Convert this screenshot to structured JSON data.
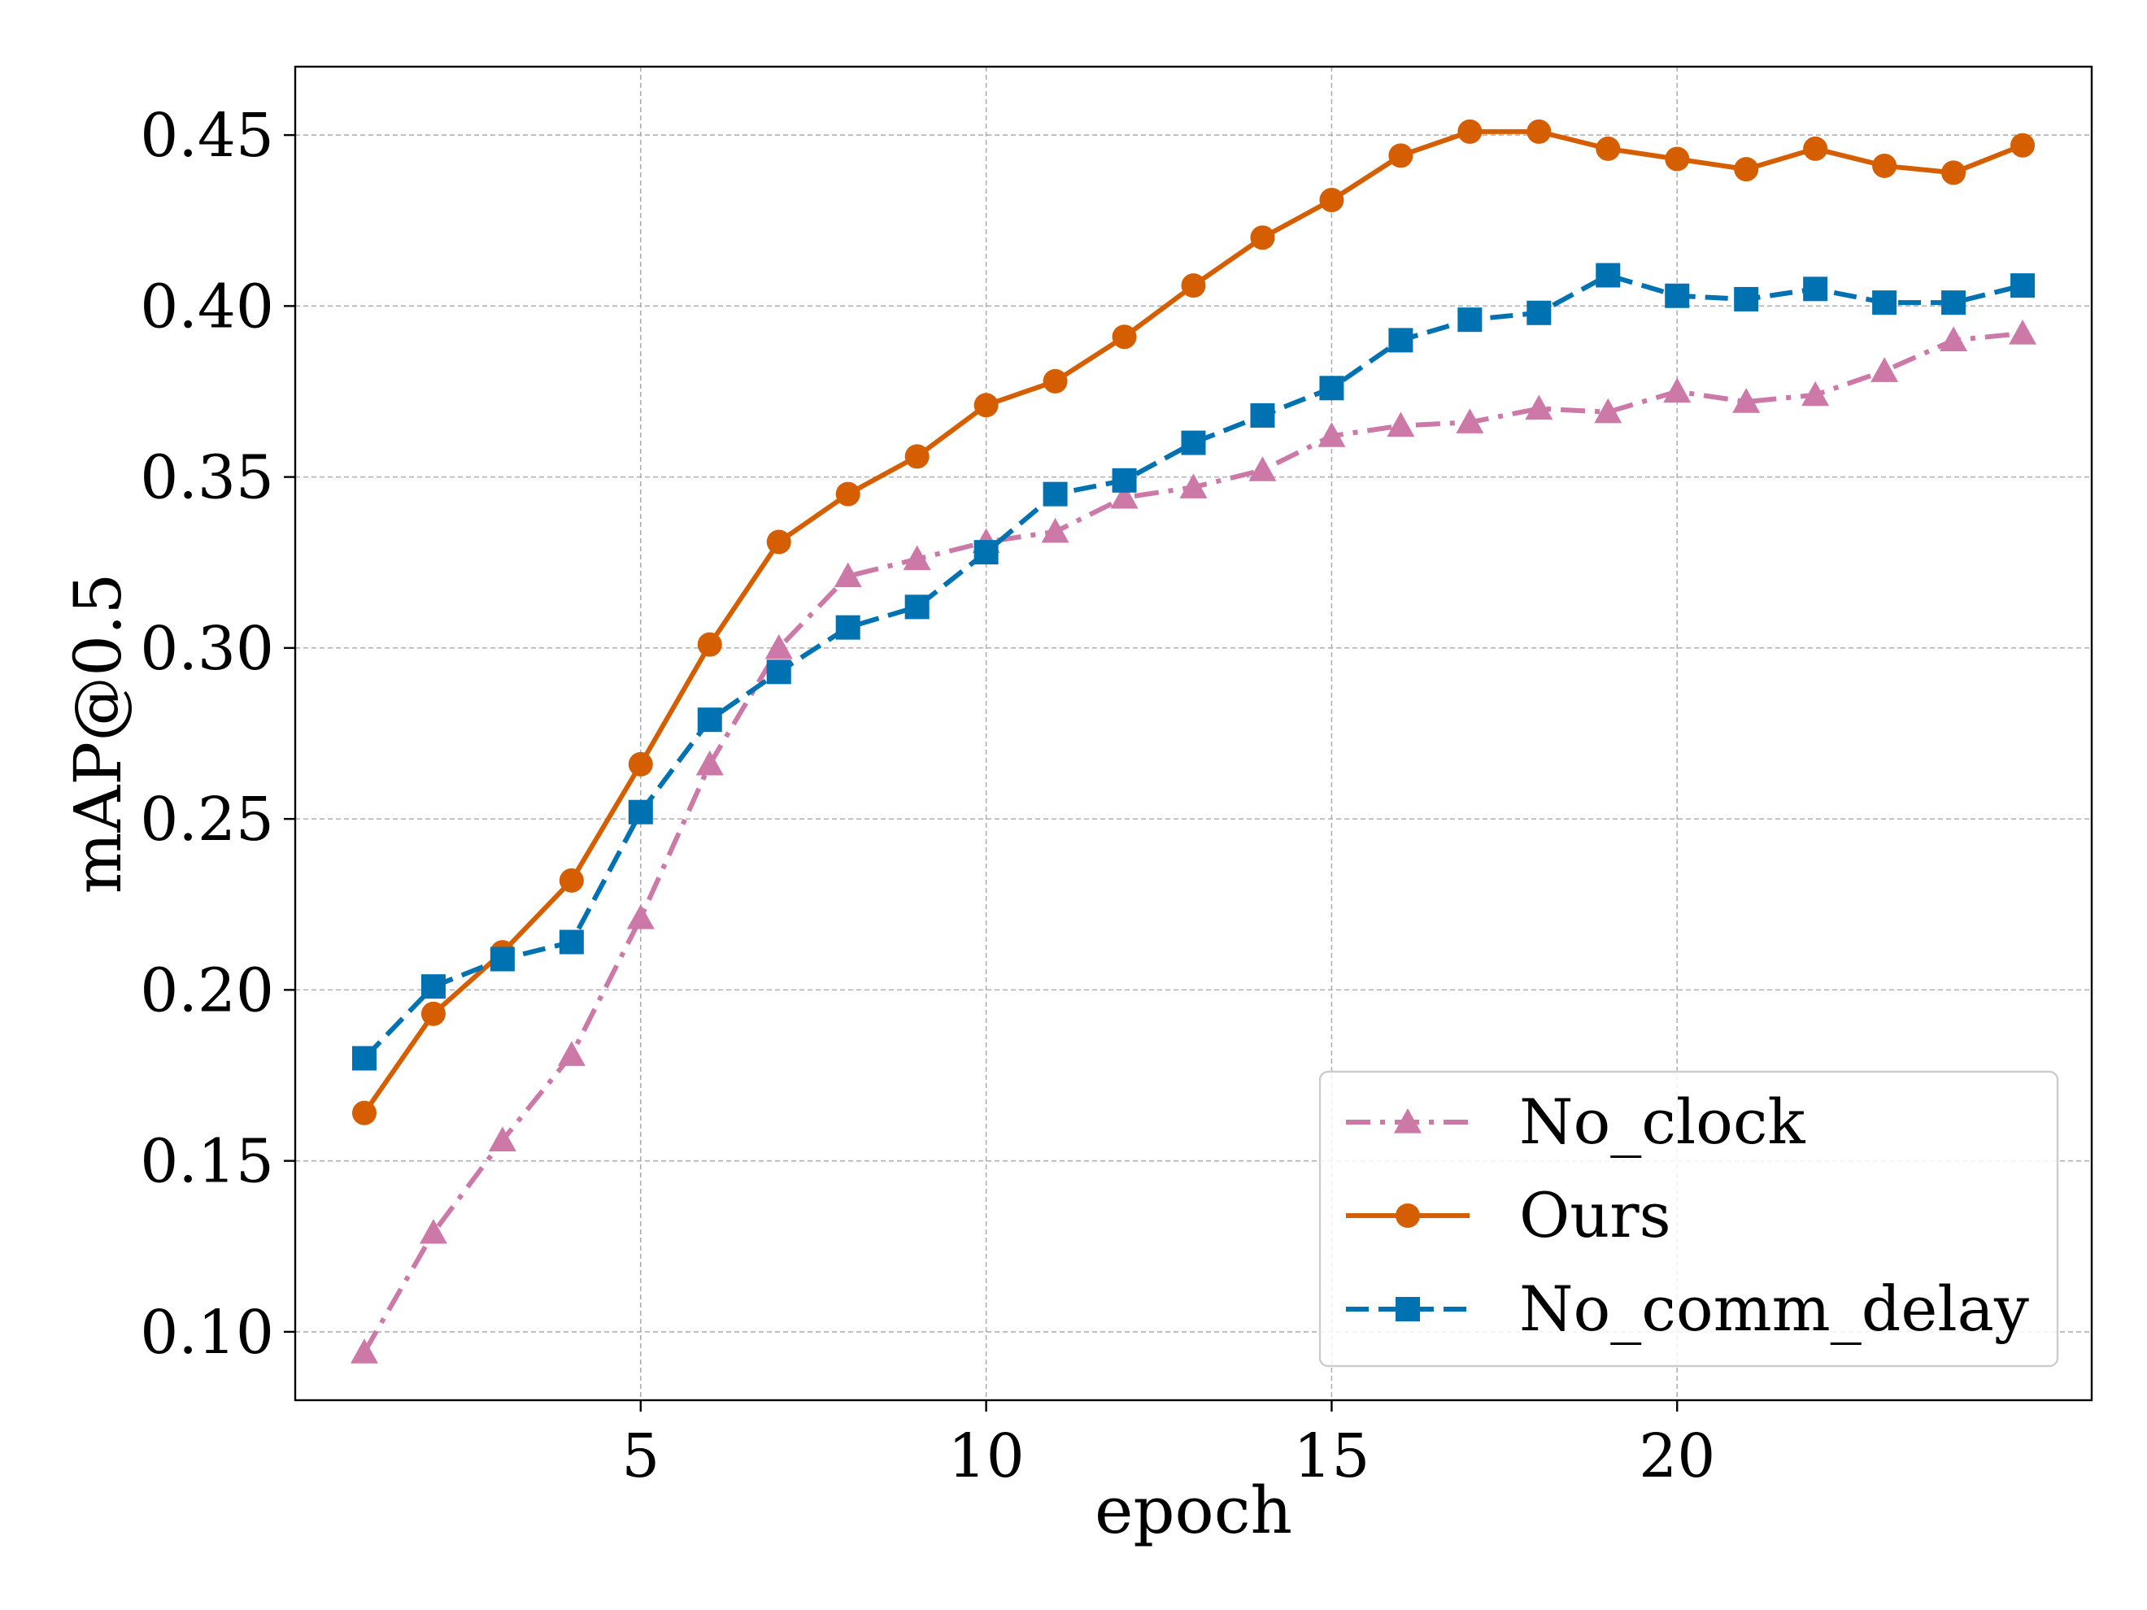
{
  "chart_data": {
    "type": "line",
    "title": "",
    "xlabel": "epoch",
    "ylabel": "mAP@0.5",
    "xlim": [
      0,
      26
    ],
    "ylim": [
      0.08,
      0.47
    ],
    "xticks": [
      5,
      10,
      15,
      20
    ],
    "xtick_labels": [
      "5",
      "10",
      "15",
      "20"
    ],
    "yticks": [
      0.1,
      0.15,
      0.2,
      0.25,
      0.3,
      0.35,
      0.4,
      0.45
    ],
    "ytick_labels": [
      "0.10",
      "0.15",
      "0.20",
      "0.25",
      "0.30",
      "0.35",
      "0.40",
      "0.45"
    ],
    "grid": true,
    "legend_position": "bottom-right",
    "x": [
      1,
      2,
      3,
      4,
      5,
      6,
      7,
      8,
      9,
      10,
      11,
      12,
      13,
      14,
      15,
      16,
      17,
      18,
      19,
      20,
      21,
      22,
      23,
      24,
      25
    ],
    "series": [
      {
        "name": "No_clock",
        "color": "#cc79a7",
        "marker": "triangle",
        "linestyle": "dashdot",
        "values": [
          0.094,
          0.129,
          0.156,
          0.181,
          0.221,
          0.266,
          0.3,
          0.321,
          0.326,
          0.331,
          0.334,
          0.344,
          0.347,
          0.352,
          0.362,
          0.365,
          0.366,
          0.37,
          0.369,
          0.375,
          0.372,
          0.374,
          0.381,
          0.39,
          0.392
        ]
      },
      {
        "name": "Ours",
        "color": "#d55e00",
        "marker": "circle",
        "linestyle": "solid",
        "values": [
          0.164,
          0.193,
          0.211,
          0.232,
          0.266,
          0.301,
          0.331,
          0.345,
          0.356,
          0.371,
          0.378,
          0.391,
          0.406,
          0.42,
          0.431,
          0.444,
          0.451,
          0.451,
          0.446,
          0.443,
          0.44,
          0.446,
          0.441,
          0.439,
          0.447
        ]
      },
      {
        "name": "No_comm_delay",
        "color": "#0072b2",
        "marker": "square",
        "linestyle": "dashed",
        "values": [
          0.18,
          0.201,
          0.209,
          0.214,
          0.252,
          0.279,
          0.293,
          0.306,
          0.312,
          0.328,
          0.345,
          0.349,
          0.36,
          0.368,
          0.376,
          0.39,
          0.396,
          0.398,
          0.409,
          0.403,
          0.402,
          0.405,
          0.401,
          0.401,
          0.406
        ]
      }
    ]
  }
}
